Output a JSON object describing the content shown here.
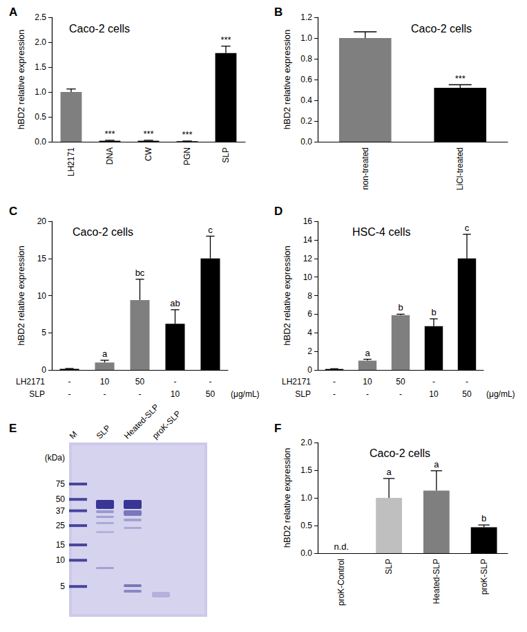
{
  "chart_data": [
    {
      "panel": "A",
      "type": "bar",
      "title": "Caco-2 cells",
      "y_label": "hBD2 relative expression",
      "categories": [
        "LH2171",
        "DNA",
        "CW",
        "PGN",
        "SLP"
      ],
      "values": [
        1.0,
        0.02,
        0.02,
        0.01,
        1.78
      ],
      "errors": [
        0.06,
        0.01,
        0.01,
        0.005,
        0.14
      ],
      "annotations": [
        null,
        "***",
        "***",
        "***",
        "***"
      ],
      "colors": [
        "#7f7f7f",
        "#000000",
        "#000000",
        "#000000",
        "#000000"
      ],
      "ylim": [
        0,
        2.5
      ],
      "yticks": [
        {
          "value": 0,
          "label": "0.0"
        },
        {
          "value": 0.5,
          "label": "0.5"
        },
        {
          "value": 1,
          "label": "1.0"
        },
        {
          "value": 1.5,
          "label": "1.5"
        },
        {
          "value": 2,
          "label": "2.0"
        },
        {
          "value": 2.5,
          "label": "2.5"
        }
      ],
      "grid": false
    },
    {
      "panel": "B",
      "type": "bar",
      "title": "Caco-2 cells",
      "y_label": "hBD2 relative expression",
      "categories": [
        "non-treated",
        "LiCl-treated"
      ],
      "values": [
        1.0,
        0.52
      ],
      "errors": [
        0.06,
        0.03
      ],
      "annotations": [
        null,
        "***"
      ],
      "colors": [
        "#7f7f7f",
        "#000000"
      ],
      "ylim": [
        0,
        1.2
      ],
      "yticks": [
        {
          "value": 0,
          "label": "0.0"
        },
        {
          "value": 0.2,
          "label": "0.2"
        },
        {
          "value": 0.4,
          "label": "0.4"
        },
        {
          "value": 0.6,
          "label": "0.6"
        },
        {
          "value": 0.8,
          "label": "0.8"
        },
        {
          "value": 1,
          "label": "1.0"
        },
        {
          "value": 1.2,
          "label": "1.2"
        }
      ],
      "grid": false
    },
    {
      "panel": "C",
      "type": "bar",
      "title": "Caco-2 cells",
      "y_label": "hBD2 relative expression",
      "condition_rows": [
        {
          "name": "LH2171",
          "values": [
            "-",
            "10",
            "50",
            "-",
            "-"
          ]
        },
        {
          "name": "SLP",
          "values": [
            "-",
            "-",
            "-",
            "10",
            "50"
          ]
        }
      ],
      "condition_unit": "(μg/mL)",
      "values": [
        0.15,
        1.0,
        9.4,
        6.2,
        15.0
      ],
      "errors": [
        0.05,
        0.3,
        2.8,
        1.9,
        3.0
      ],
      "annotations": [
        null,
        "a",
        "bc",
        "ab",
        "c"
      ],
      "colors": [
        "#000000",
        "#7f7f7f",
        "#7f7f7f",
        "#000000",
        "#000000"
      ],
      "ylim": [
        0,
        20
      ],
      "yticks": [
        0,
        5,
        10,
        15,
        20
      ],
      "grid": false
    },
    {
      "panel": "D",
      "type": "bar",
      "title": "HSC-4 cells",
      "y_label": "hBD2 relative expression",
      "condition_rows": [
        {
          "name": "LH2171",
          "values": [
            "-",
            "10",
            "50",
            "-",
            "-"
          ]
        },
        {
          "name": "SLP",
          "values": [
            "-",
            "-",
            "-",
            "10",
            "50"
          ]
        }
      ],
      "condition_unit": "(μg/mL)",
      "values": [
        0.1,
        1.0,
        5.9,
        4.7,
        12.0
      ],
      "errors": [
        0.03,
        0.15,
        0.1,
        0.8,
        2.6
      ],
      "annotations": [
        null,
        "a",
        "b",
        "b",
        "c"
      ],
      "colors": [
        "#000000",
        "#7f7f7f",
        "#7f7f7f",
        "#000000",
        "#000000"
      ],
      "ylim": [
        0,
        16
      ],
      "yticks": [
        0,
        2,
        4,
        6,
        8,
        10,
        12,
        14,
        16
      ],
      "grid": false
    },
    {
      "panel": "F",
      "type": "bar",
      "title": "Caco-2 cells",
      "y_label": "hBD2 relative expression",
      "categories": [
        "proK-Control",
        "SLP",
        "Heated-SLP",
        "proK-SLP"
      ],
      "values": [
        null,
        1.0,
        1.13,
        0.47
      ],
      "errors": [
        null,
        0.35,
        0.36,
        0.04
      ],
      "annotations": [
        null,
        "a",
        "a",
        "b"
      ],
      "missing_label": "n.d.",
      "colors": [
        "#000000",
        "#bfbfbf",
        "#7f7f7f",
        "#000000"
      ],
      "ylim": [
        0,
        2.0
      ],
      "yticks": [
        {
          "value": 0,
          "label": "0.0"
        },
        {
          "value": 0.5,
          "label": "0.5"
        },
        {
          "value": 1,
          "label": "1.0"
        },
        {
          "value": 1.5,
          "label": "1.5"
        },
        {
          "value": 2,
          "label": "2.0"
        }
      ],
      "grid": false
    }
  ],
  "gel": {
    "panel": "E",
    "marker_lane": "M",
    "lanes": [
      "SLP",
      "Heated-SLP",
      "proK-SLP"
    ],
    "unit_label": "(kDa)",
    "markers": [
      75,
      50,
      37,
      25,
      15,
      10,
      5
    ]
  }
}
